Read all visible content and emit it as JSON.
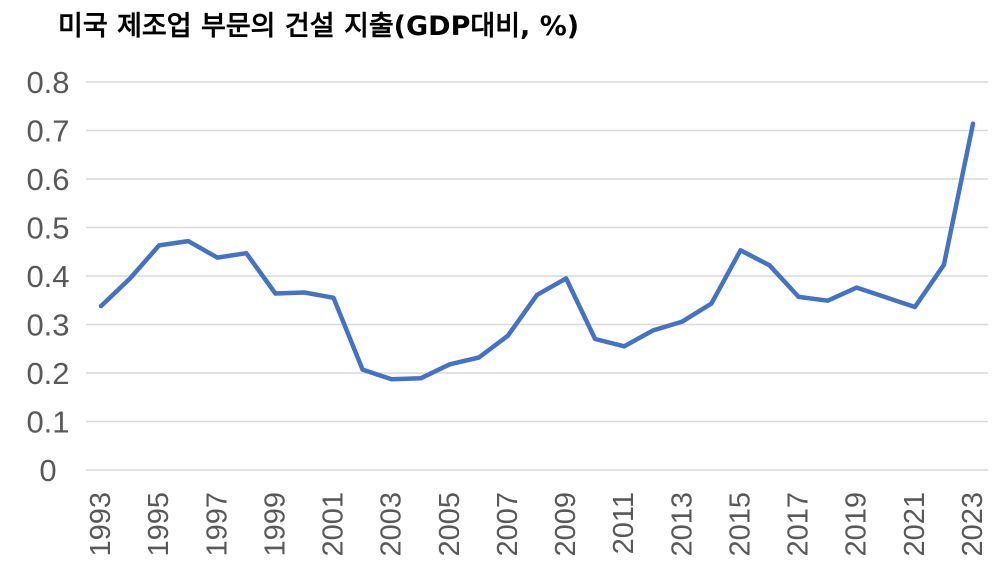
{
  "chart_data": {
    "type": "line",
    "title": "미국 제조업 부문의 건설 지출(GDP대비, %)",
    "xlabel": "",
    "ylabel": "",
    "x": [
      1993,
      1994,
      1995,
      1996,
      1997,
      1998,
      1999,
      2000,
      2001,
      2002,
      2003,
      2004,
      2005,
      2006,
      2007,
      2008,
      2009,
      2010,
      2011,
      2012,
      2013,
      2014,
      2015,
      2016,
      2017,
      2018,
      2019,
      2020,
      2021,
      2022,
      2023
    ],
    "series": [
      {
        "values": [
          0.338,
          0.395,
          0.463,
          0.472,
          0.438,
          0.447,
          0.364,
          0.366,
          0.355,
          0.207,
          0.187,
          0.189,
          0.218,
          0.232,
          0.277,
          0.361,
          0.395,
          0.27,
          0.255,
          0.288,
          0.306,
          0.343,
          0.453,
          0.422,
          0.357,
          0.349,
          0.376,
          0.356,
          0.336,
          0.423,
          0.714
        ],
        "color": "#4472C4"
      }
    ],
    "x_tick_labels": [
      "1993",
      "1995",
      "1997",
      "1999",
      "2001",
      "2003",
      "2005",
      "2007",
      "2009",
      "2011",
      "2013",
      "2015",
      "2017",
      "2019",
      "2021",
      "2023"
    ],
    "y_tick_labels": [
      "0",
      "0.1",
      "0.2",
      "0.3",
      "0.4",
      "0.5",
      "0.6",
      "0.7",
      "0.8"
    ],
    "ylim": [
      0,
      0.8
    ],
    "grid": true,
    "legend": "none",
    "gridline_color": "#D9D9D9"
  }
}
